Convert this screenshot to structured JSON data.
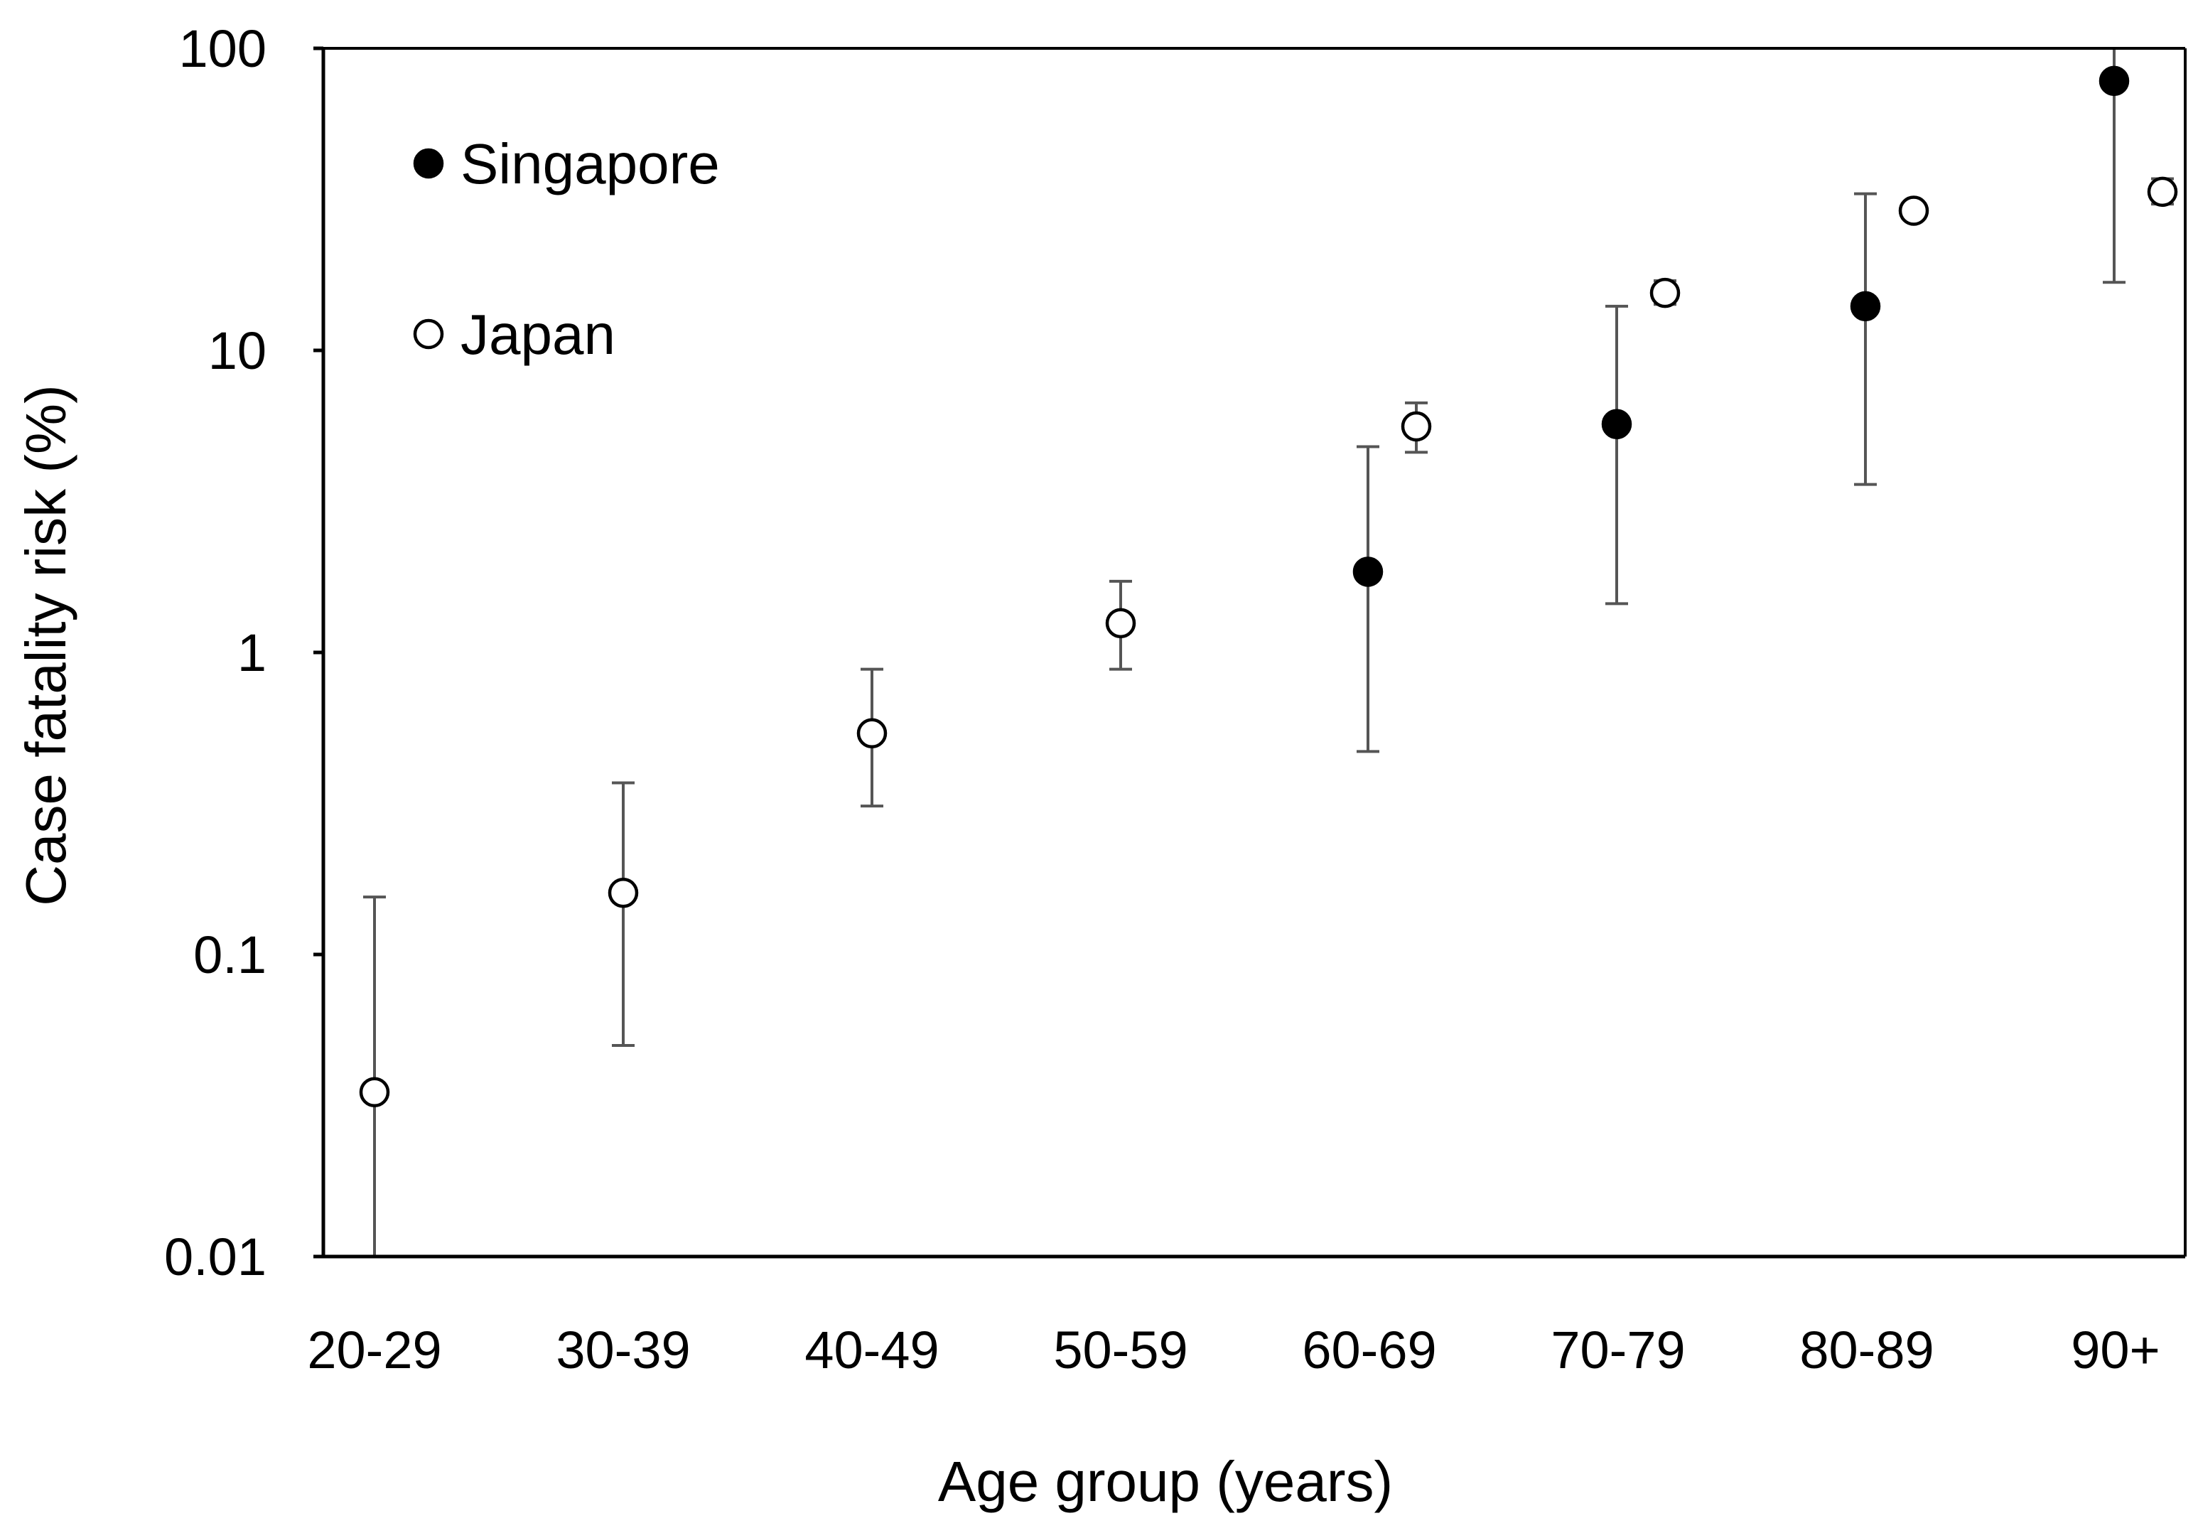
{
  "chart_data": {
    "type": "scatter",
    "title": "",
    "xlabel": "Age group (years)",
    "ylabel": "Case fatality risk (%)",
    "yscale": "log",
    "ylim": [
      0.01,
      100
    ],
    "y_ticks": [
      "0.01",
      "0.1",
      "1",
      "10",
      "100"
    ],
    "categories": [
      "20-29",
      "30-39",
      "40-49",
      "50-59",
      "60-69",
      "70-79",
      "80-89",
      "90+"
    ],
    "legend_position": "top-left",
    "series": [
      {
        "name": "Singapore",
        "marker": "filled-circle",
        "points": [
          {
            "category": "60-69",
            "value": 1.85,
            "lower": 0.47,
            "upper": 4.8
          },
          {
            "category": "70-79",
            "value": 5.7,
            "lower": 1.45,
            "upper": 14.0
          },
          {
            "category": "80-89",
            "value": 14.0,
            "lower": 3.6,
            "upper": 33.0
          },
          {
            "category": "90+",
            "value": 78.0,
            "lower": 16.8,
            "upper": 100.0
          }
        ]
      },
      {
        "name": "Japan",
        "marker": "open-circle",
        "points": [
          {
            "category": "20-29",
            "value": 0.035,
            "lower": 0.01,
            "upper": 0.155
          },
          {
            "category": "30-39",
            "value": 0.16,
            "lower": 0.05,
            "upper": 0.37
          },
          {
            "category": "40-49",
            "value": 0.54,
            "lower": 0.31,
            "upper": 0.88
          },
          {
            "category": "50-59",
            "value": 1.25,
            "lower": 0.88,
            "upper": 1.72
          },
          {
            "category": "60-69",
            "value": 5.6,
            "lower": 4.6,
            "upper": 6.7
          },
          {
            "category": "70-79",
            "value": 15.5,
            "lower": 14.2,
            "upper": 17.0
          },
          {
            "category": "80-89",
            "value": 29.0,
            "lower": 27.5,
            "upper": 30.5
          },
          {
            "category": "90+",
            "value": 33.5,
            "lower": 30.5,
            "upper": 37.0
          }
        ]
      }
    ]
  }
}
